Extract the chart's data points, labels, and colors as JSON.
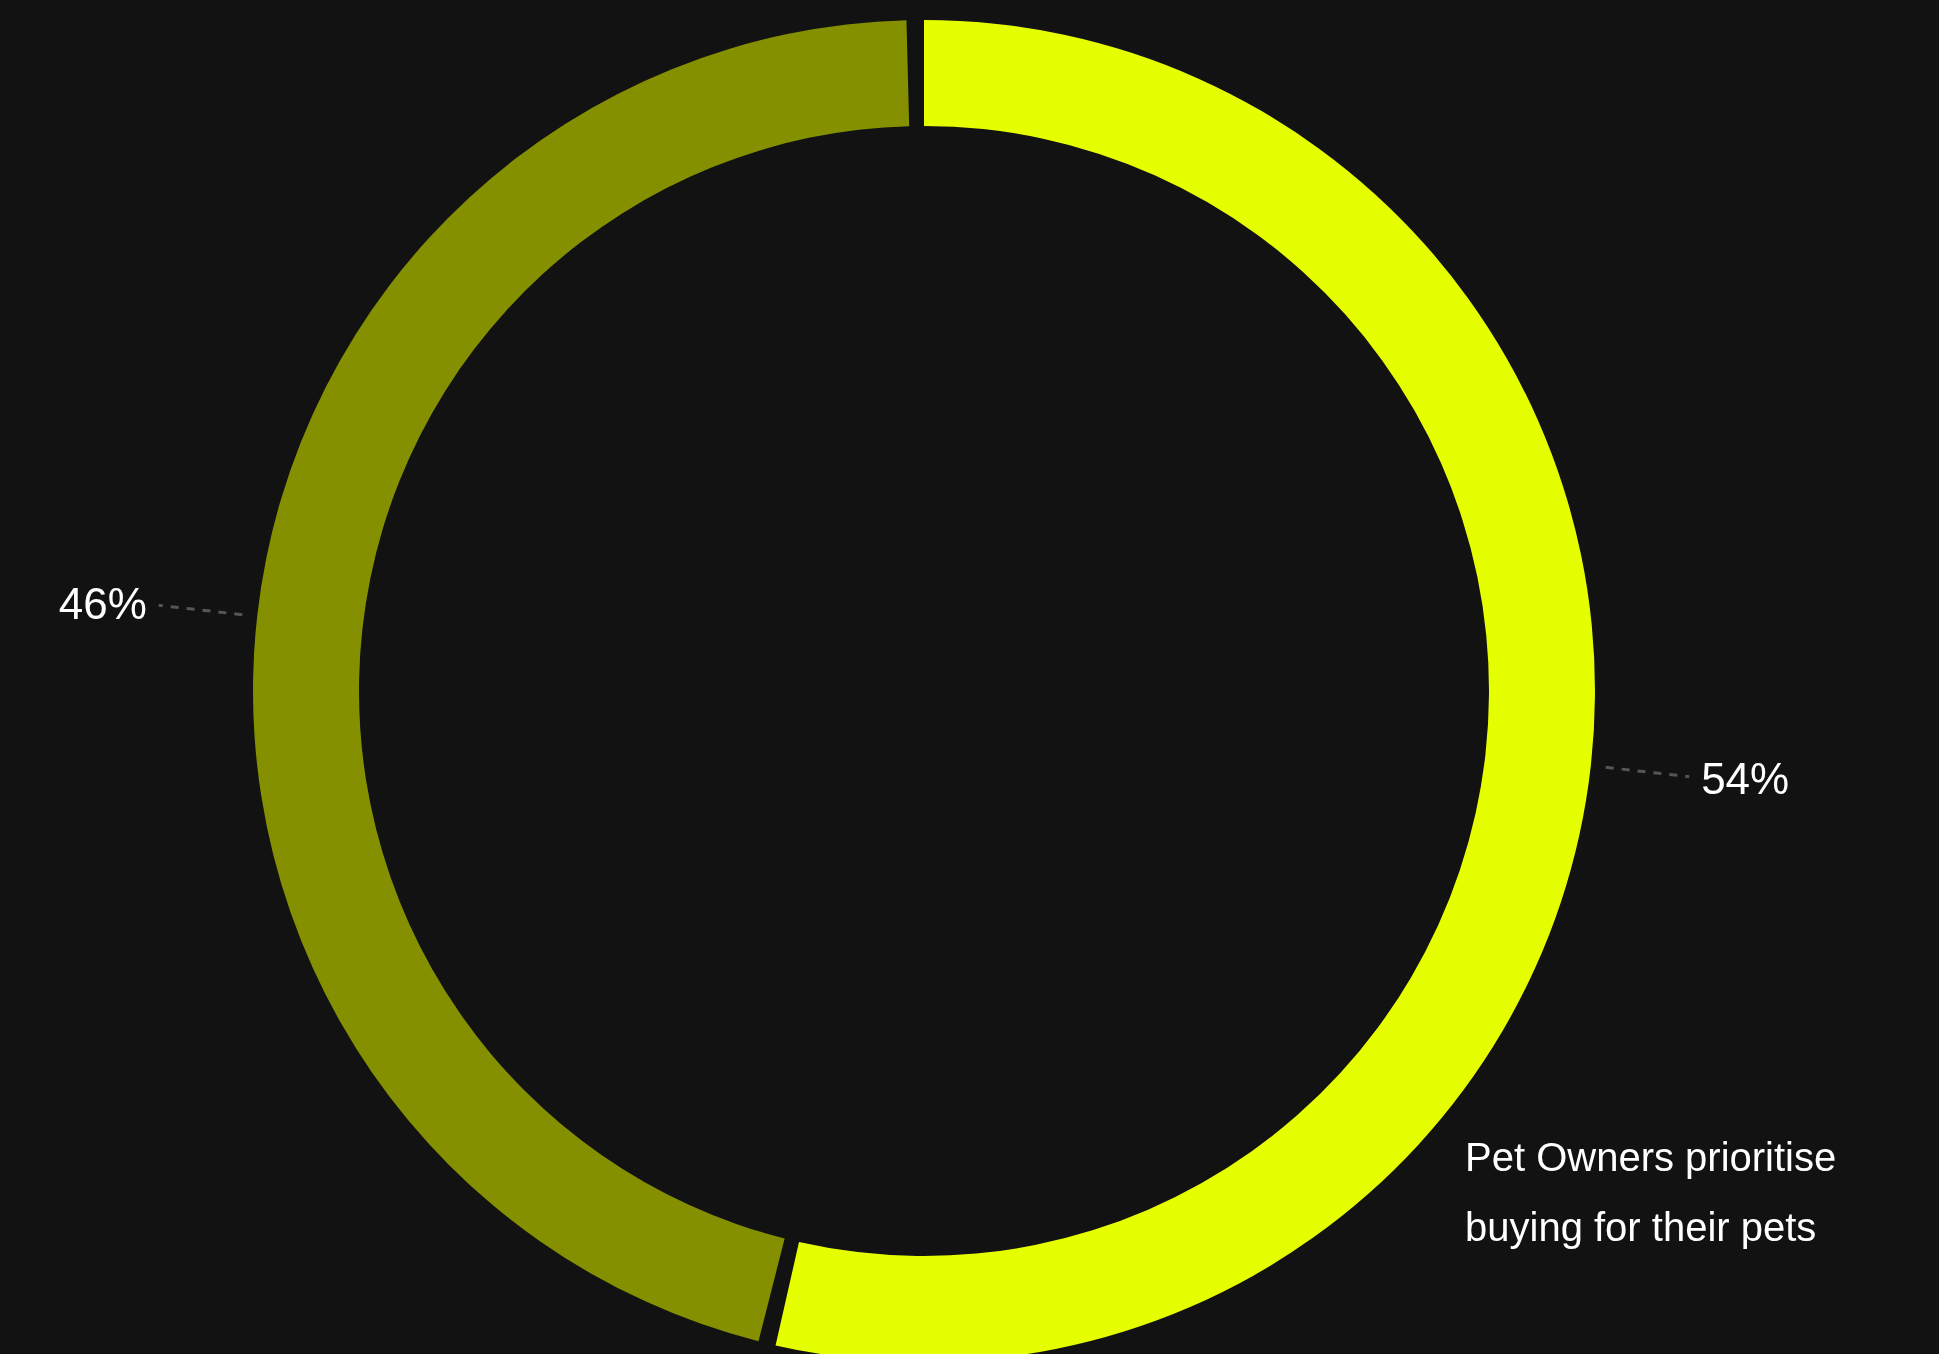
{
  "chart_data": {
    "type": "donut",
    "categories": [
      null,
      null
    ],
    "values": [
      54,
      46
    ],
    "colors": [
      "#e6ff00",
      "#859000"
    ],
    "value_labels": [
      "54%",
      "46%"
    ],
    "annotations": [
      "Pet Owners prioritise buying for their pets"
    ]
  }
}
